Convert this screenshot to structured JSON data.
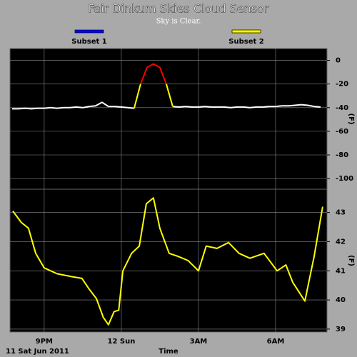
{
  "chart_data": [
    {
      "type": "line",
      "title": "Fair Dinkum Skies Cloud Sensor",
      "subtitle": "Sky is Clear.",
      "legend": [
        {
          "name": "Subset 1",
          "color": "#0000ff"
        },
        {
          "name": "Subset 2",
          "color": "#ffff00"
        }
      ],
      "y_label": "(F)",
      "xlim": [
        19.67,
        32.0
      ],
      "xticks": [
        {
          "value": 21,
          "label": "9PM"
        },
        {
          "value": 24,
          "label": "12 Sun"
        },
        {
          "value": 27,
          "label": "3AM"
        },
        {
          "value": 30,
          "label": "6AM"
        }
      ],
      "ylim": [
        -109,
        10
      ],
      "yticks": [
        0,
        -20,
        -40,
        -60,
        -80,
        -100
      ],
      "grid": true,
      "x": [
        19.75,
        20,
        20.25,
        20.5,
        20.75,
        21,
        21.25,
        21.5,
        21.75,
        22,
        22.25,
        22.5,
        22.75,
        23,
        23.25,
        23.5,
        23.75,
        24,
        24.25,
        24.5,
        24.75,
        25,
        25.25,
        25.5,
        25.75,
        26,
        26.25,
        26.5,
        26.75,
        27,
        27.25,
        27.5,
        27.75,
        28,
        28.25,
        28.5,
        28.75,
        29,
        29.25,
        29.5,
        29.75,
        30,
        30.25,
        30.5,
        30.75,
        31,
        31.25,
        31.5,
        31.75
      ],
      "series": [
        {
          "color": "#ffffff",
          "values": [
            -41,
            -41,
            -40.5,
            -41,
            -40.5,
            -40.5,
            -40,
            -40.5,
            -40,
            -40,
            -39.5,
            -40,
            -39,
            -38.5,
            -35.5,
            -39,
            -39,
            -39.5,
            -40,
            -40.5,
            null,
            null,
            null,
            null,
            null,
            -39,
            -39.5,
            -39,
            -39.5,
            -39.5,
            -39,
            -39.5,
            -39.5,
            -39.5,
            -40,
            -39.5,
            -39.5,
            -40,
            -39.5,
            -39.5,
            -39,
            -39,
            -38.5,
            -38.5,
            -38,
            -37.5,
            -38,
            -39,
            -39.5
          ]
        },
        {
          "color": "#ffff00",
          "values": [
            null,
            null,
            null,
            null,
            null,
            null,
            null,
            null,
            null,
            null,
            null,
            null,
            null,
            null,
            null,
            null,
            null,
            null,
            null,
            -40.5,
            -20,
            null,
            null,
            null,
            -20,
            -39,
            null,
            null,
            null,
            null,
            null,
            null,
            null,
            null,
            null,
            null,
            null,
            null,
            null,
            null,
            null,
            null,
            null,
            null,
            null,
            null,
            null,
            null,
            null
          ]
        },
        {
          "color": "#ff0000",
          "values": [
            null,
            null,
            null,
            null,
            null,
            null,
            null,
            null,
            null,
            null,
            null,
            null,
            null,
            null,
            null,
            null,
            null,
            null,
            null,
            null,
            -20,
            -6,
            -3,
            -6,
            -20,
            null,
            null,
            null,
            null,
            null,
            null,
            null,
            null,
            null,
            null,
            null,
            null,
            null,
            null,
            null,
            null,
            null,
            null,
            null,
            null,
            null,
            null,
            null,
            null
          ]
        }
      ]
    },
    {
      "type": "line",
      "y_label": "(F)",
      "x_label": "Time",
      "date_label": "11 Sat Jun 2011",
      "xlim": [
        19.67,
        32.0
      ],
      "xticks": [
        {
          "value": 21,
          "label": "9PM"
        },
        {
          "value": 24,
          "label": "12 Sun"
        },
        {
          "value": 27,
          "label": "3AM"
        },
        {
          "value": 30,
          "label": "6AM"
        }
      ],
      "ylim": [
        38.9,
        43.8
      ],
      "yticks": [
        43,
        42,
        41,
        40,
        39
      ],
      "grid": true,
      "x": [
        19.78,
        20.11,
        20.39,
        20.67,
        21,
        21.5,
        22.06,
        22.47,
        22.75,
        23.03,
        23.3,
        23.5,
        23.72,
        23.9,
        24.06,
        24.4,
        24.7,
        24.97,
        25.25,
        25.5,
        25.86,
        26.2,
        26.6,
        27,
        27.3,
        27.72,
        28.17,
        28.58,
        29,
        29.55,
        30.06,
        30.4,
        30.67,
        31.14,
        31.5,
        31.83
      ],
      "series": [
        {
          "color": "#ffff00",
          "values": [
            43.05,
            42.66,
            42.46,
            41.6,
            41.1,
            40.9,
            40.8,
            40.74,
            40.37,
            40.05,
            39.4,
            39.15,
            39.6,
            39.65,
            41.0,
            41.6,
            41.85,
            43.3,
            43.5,
            42.46,
            41.6,
            41.5,
            41.35,
            41.0,
            41.85,
            41.77,
            41.97,
            41.6,
            41.43,
            41.6,
            41.0,
            41.2,
            40.6,
            39.96,
            41.5,
            43.2
          ]
        }
      ]
    }
  ]
}
